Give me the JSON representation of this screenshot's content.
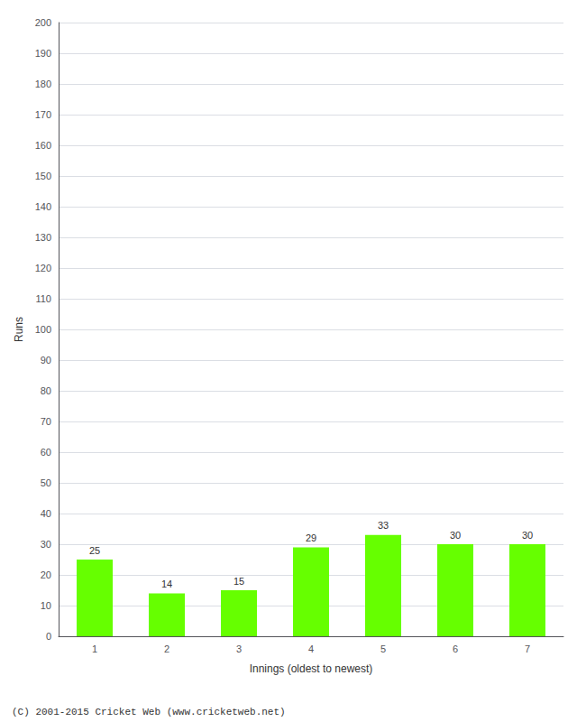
{
  "chart_data": {
    "type": "bar",
    "categories": [
      "1",
      "2",
      "3",
      "4",
      "5",
      "6",
      "7"
    ],
    "values": [
      25,
      14,
      15,
      29,
      33,
      30,
      30
    ],
    "color": "#66ff00",
    "xlabel": "Innings (oldest to newest)",
    "ylabel": "Runs",
    "ylim": [
      0,
      200
    ],
    "yticks": [
      0,
      10,
      20,
      30,
      40,
      50,
      60,
      70,
      80,
      90,
      100,
      110,
      120,
      130,
      140,
      150,
      160,
      170,
      180,
      190,
      200
    ],
    "grid": true,
    "data_labels": true,
    "annotations": [
      "(C) 2001-2015 Cricket Web (www.cricketweb.net)"
    ]
  }
}
